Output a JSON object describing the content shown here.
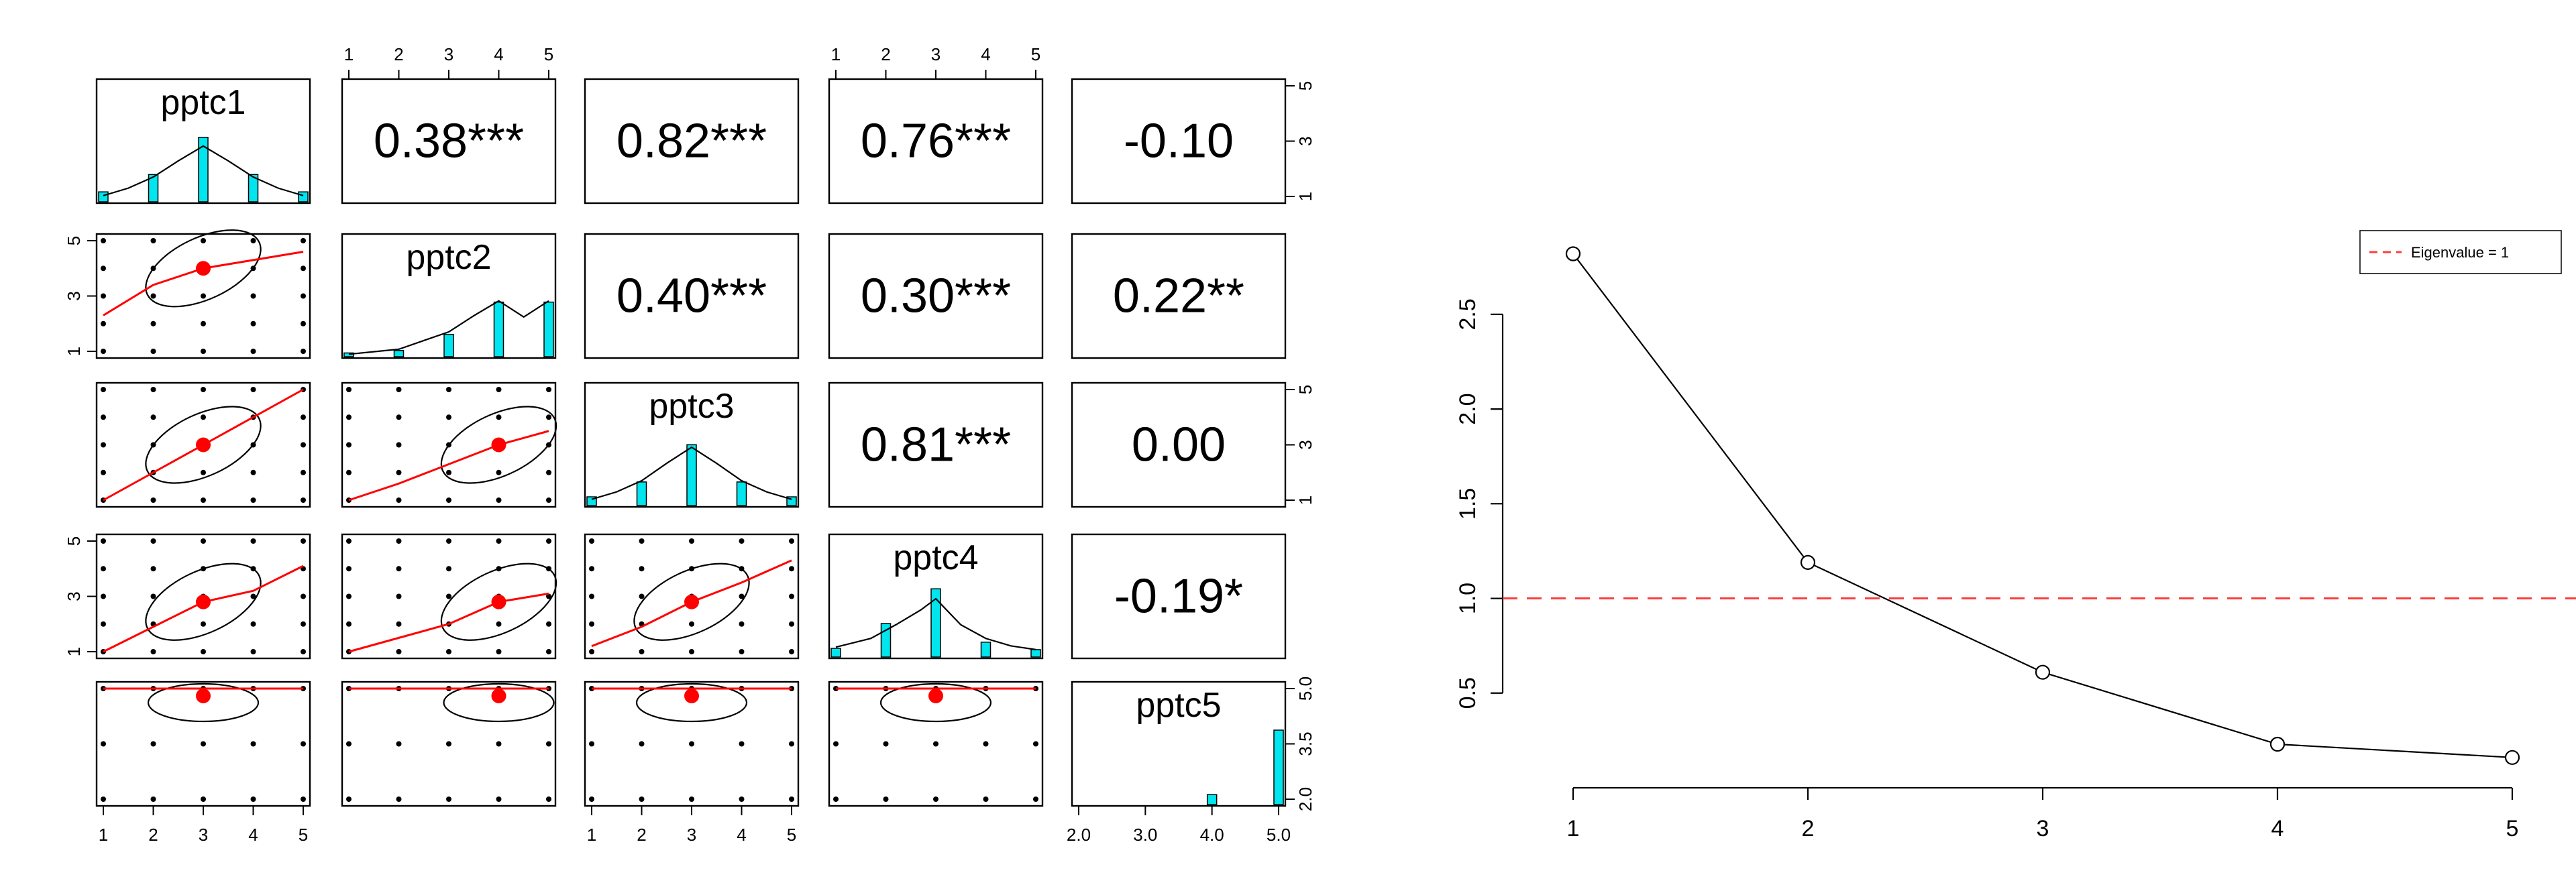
{
  "chart_data": [
    {
      "type": "scatter",
      "subtype": "pairs-panels",
      "variables": [
        "pptc1",
        "pptc2",
        "pptc3",
        "pptc4",
        "pptc5"
      ],
      "correlations": [
        {
          "row": 0,
          "col": 1,
          "text": "0.38***"
        },
        {
          "row": 0,
          "col": 2,
          "text": "0.82***"
        },
        {
          "row": 0,
          "col": 3,
          "text": "0.76***"
        },
        {
          "row": 0,
          "col": 4,
          "text": "-0.10"
        },
        {
          "row": 1,
          "col": 2,
          "text": "0.40***"
        },
        {
          "row": 1,
          "col": 3,
          "text": "0.30***"
        },
        {
          "row": 1,
          "col": 4,
          "text": "0.22**"
        },
        {
          "row": 2,
          "col": 3,
          "text": "0.81***"
        },
        {
          "row": 2,
          "col": 4,
          "text": "0.00"
        },
        {
          "row": 3,
          "col": 4,
          "text": "-0.19*"
        }
      ],
      "ranges": [
        [
          1,
          5
        ],
        [
          1,
          5
        ],
        [
          1,
          5
        ],
        [
          1,
          5
        ],
        [
          2,
          5
        ]
      ],
      "ticks": [
        {
          "values": [
            1,
            2,
            3,
            4,
            5
          ],
          "labels": [
            "1",
            "2",
            "3",
            "4",
            "5"
          ]
        },
        {
          "values": [
            1,
            2,
            3,
            4,
            5
          ],
          "labels": [
            "1",
            "2",
            "3",
            "4",
            "5"
          ]
        },
        {
          "values": [
            1,
            2,
            3,
            4,
            5
          ],
          "labels": [
            "1",
            "2",
            "3",
            "4",
            "5"
          ]
        },
        {
          "values": [
            1,
            2,
            3,
            4,
            5
          ],
          "labels": [
            "1",
            "2",
            "3",
            "4",
            "5"
          ]
        },
        {
          "values": [
            2,
            3,
            4,
            5
          ],
          "labels": [
            "2.0",
            "3.0",
            "4.0",
            "5.0"
          ]
        }
      ],
      "side_ticks": [
        {
          "values": [
            1,
            3,
            5
          ],
          "labels": [
            "1",
            "3",
            "5"
          ]
        },
        {
          "values": [
            1,
            3,
            5
          ],
          "labels": [
            "1",
            "3",
            "5"
          ]
        },
        {
          "values": [
            1,
            3,
            5
          ],
          "labels": [
            "1",
            "3",
            "5"
          ]
        },
        {
          "values": [
            1,
            3,
            5
          ],
          "labels": [
            "1",
            "3",
            "5"
          ]
        },
        {
          "values": [
            2,
            3.5,
            5
          ],
          "labels": [
            "2.0",
            "3.5",
            "5.0"
          ]
        }
      ],
      "histograms": [
        {
          "bins": [
            1,
            2,
            3,
            4,
            5
          ],
          "heights": [
            0.08,
            0.22,
            0.52,
            0.22,
            0.08
          ]
        },
        {
          "bins": [
            1,
            2,
            3,
            4,
            5
          ],
          "heights": [
            0.03,
            0.05,
            0.18,
            0.44,
            0.44
          ]
        },
        {
          "bins": [
            1,
            2,
            3,
            4,
            5
          ],
          "heights": [
            0.07,
            0.19,
            0.49,
            0.19,
            0.07
          ]
        },
        {
          "bins": [
            1,
            2,
            3,
            4,
            5
          ],
          "heights": [
            0.07,
            0.27,
            0.55,
            0.12,
            0.06
          ]
        },
        {
          "bins": [
            2,
            3,
            4,
            5
          ],
          "heights": [
            0.0,
            0.0,
            0.08,
            0.6
          ]
        }
      ],
      "densities": [
        [
          [
            1,
            0.05
          ],
          [
            1.5,
            0.11
          ],
          [
            2,
            0.2
          ],
          [
            2.5,
            0.33
          ],
          [
            3,
            0.45
          ],
          [
            3.5,
            0.33
          ],
          [
            4,
            0.2
          ],
          [
            4.5,
            0.11
          ],
          [
            5,
            0.05
          ]
        ],
        [
          [
            1,
            0.02
          ],
          [
            2,
            0.06
          ],
          [
            3,
            0.2
          ],
          [
            3.5,
            0.33
          ],
          [
            4,
            0.45
          ],
          [
            4.5,
            0.32
          ],
          [
            5,
            0.45
          ]
        ],
        [
          [
            1,
            0.05
          ],
          [
            1.5,
            0.11
          ],
          [
            2,
            0.2
          ],
          [
            2.5,
            0.34
          ],
          [
            3,
            0.47
          ],
          [
            3.5,
            0.34
          ],
          [
            4,
            0.2
          ],
          [
            4.5,
            0.11
          ],
          [
            5,
            0.05
          ]
        ],
        [
          [
            1,
            0.08
          ],
          [
            1.7,
            0.15
          ],
          [
            2.2,
            0.26
          ],
          [
            2.7,
            0.38
          ],
          [
            3,
            0.47
          ],
          [
            3.5,
            0.26
          ],
          [
            4,
            0.15
          ],
          [
            4.5,
            0.09
          ],
          [
            5,
            0.06
          ]
        ],
        [
          [
            2,
            0
          ],
          [
            3,
            0
          ],
          [
            4,
            0
          ],
          [
            5,
            0
          ]
        ]
      ],
      "scatter_points": [
        1,
        2,
        3,
        4,
        5
      ],
      "pptc5_points": [
        2,
        3.5,
        5
      ],
      "panels": [
        {
          "row": 1,
          "col": 0,
          "mean": [
            3,
            4
          ],
          "loess": [
            [
              1,
              2.3
            ],
            [
              2,
              3.4
            ],
            [
              3,
              4
            ],
            [
              4,
              4.3
            ],
            [
              5,
              4.6
            ]
          ]
        },
        {
          "row": 2,
          "col": 0,
          "mean": [
            3,
            3
          ],
          "loess": [
            [
              1,
              1
            ],
            [
              2,
              2
            ],
            [
              3,
              3
            ],
            [
              4,
              4
            ],
            [
              5,
              5
            ]
          ]
        },
        {
          "row": 2,
          "col": 1,
          "mean": [
            4,
            3
          ],
          "loess": [
            [
              1,
              1
            ],
            [
              2,
              1.6
            ],
            [
              3,
              2.3
            ],
            [
              4,
              3
            ],
            [
              5,
              3.5
            ]
          ]
        },
        {
          "row": 3,
          "col": 0,
          "mean": [
            3,
            2.8
          ],
          "loess": [
            [
              1,
              1
            ],
            [
              2,
              1.9
            ],
            [
              3,
              2.8
            ],
            [
              4,
              3.2
            ],
            [
              5,
              4.1
            ]
          ]
        },
        {
          "row": 3,
          "col": 1,
          "mean": [
            4,
            2.8
          ],
          "loess": [
            [
              1,
              1
            ],
            [
              2,
              1.5
            ],
            [
              3,
              2
            ],
            [
              4,
              2.8
            ],
            [
              5,
              3.1
            ]
          ]
        },
        {
          "row": 3,
          "col": 2,
          "mean": [
            3,
            2.8
          ],
          "loess": [
            [
              1,
              1.2
            ],
            [
              2,
              1.9
            ],
            [
              3,
              2.8
            ],
            [
              4,
              3.5
            ],
            [
              5,
              4.3
            ]
          ]
        },
        {
          "row": 4,
          "col": 0,
          "mean": [
            3,
            4.8
          ],
          "loess": [
            [
              1,
              5
            ],
            [
              5,
              5
            ]
          ]
        },
        {
          "row": 4,
          "col": 1,
          "mean": [
            4,
            4.8
          ],
          "loess": [
            [
              1,
              5
            ],
            [
              5,
              5
            ]
          ]
        },
        {
          "row": 4,
          "col": 2,
          "mean": [
            3,
            4.8
          ],
          "loess": [
            [
              1,
              5
            ],
            [
              5,
              5
            ]
          ]
        },
        {
          "row": 4,
          "col": 3,
          "mean": [
            3,
            4.8
          ],
          "loess": [
            [
              1,
              5
            ],
            [
              5,
              5
            ]
          ]
        }
      ],
      "colors": {
        "hist_fill": "#00e5ee",
        "fit_line": "#ff0000",
        "mean_point": "#ff0000",
        "ellipse": "#000000"
      }
    },
    {
      "type": "line",
      "x": [
        1,
        2,
        3,
        4,
        5
      ],
      "y": [
        2.82,
        1.19,
        0.61,
        0.23,
        0.16
      ],
      "xlim": [
        1,
        5
      ],
      "ylim": [
        0,
        2.85
      ],
      "yticks": [
        0.5,
        1.0,
        1.5,
        2.0,
        2.5
      ],
      "ytick_labels": [
        "0.5",
        "1.0",
        "1.5",
        "2.0",
        "2.5"
      ],
      "xticks": [
        1,
        2,
        3,
        4,
        5
      ],
      "xtick_labels": [
        "1",
        "2",
        "3",
        "4",
        "5"
      ],
      "reference_line": {
        "y": 1,
        "label": "Eigenvalue = 1",
        "color": "#ff3b3b"
      },
      "legend": {
        "position": "top-right",
        "entries": [
          "Eigenvalue = 1"
        ]
      }
    }
  ]
}
